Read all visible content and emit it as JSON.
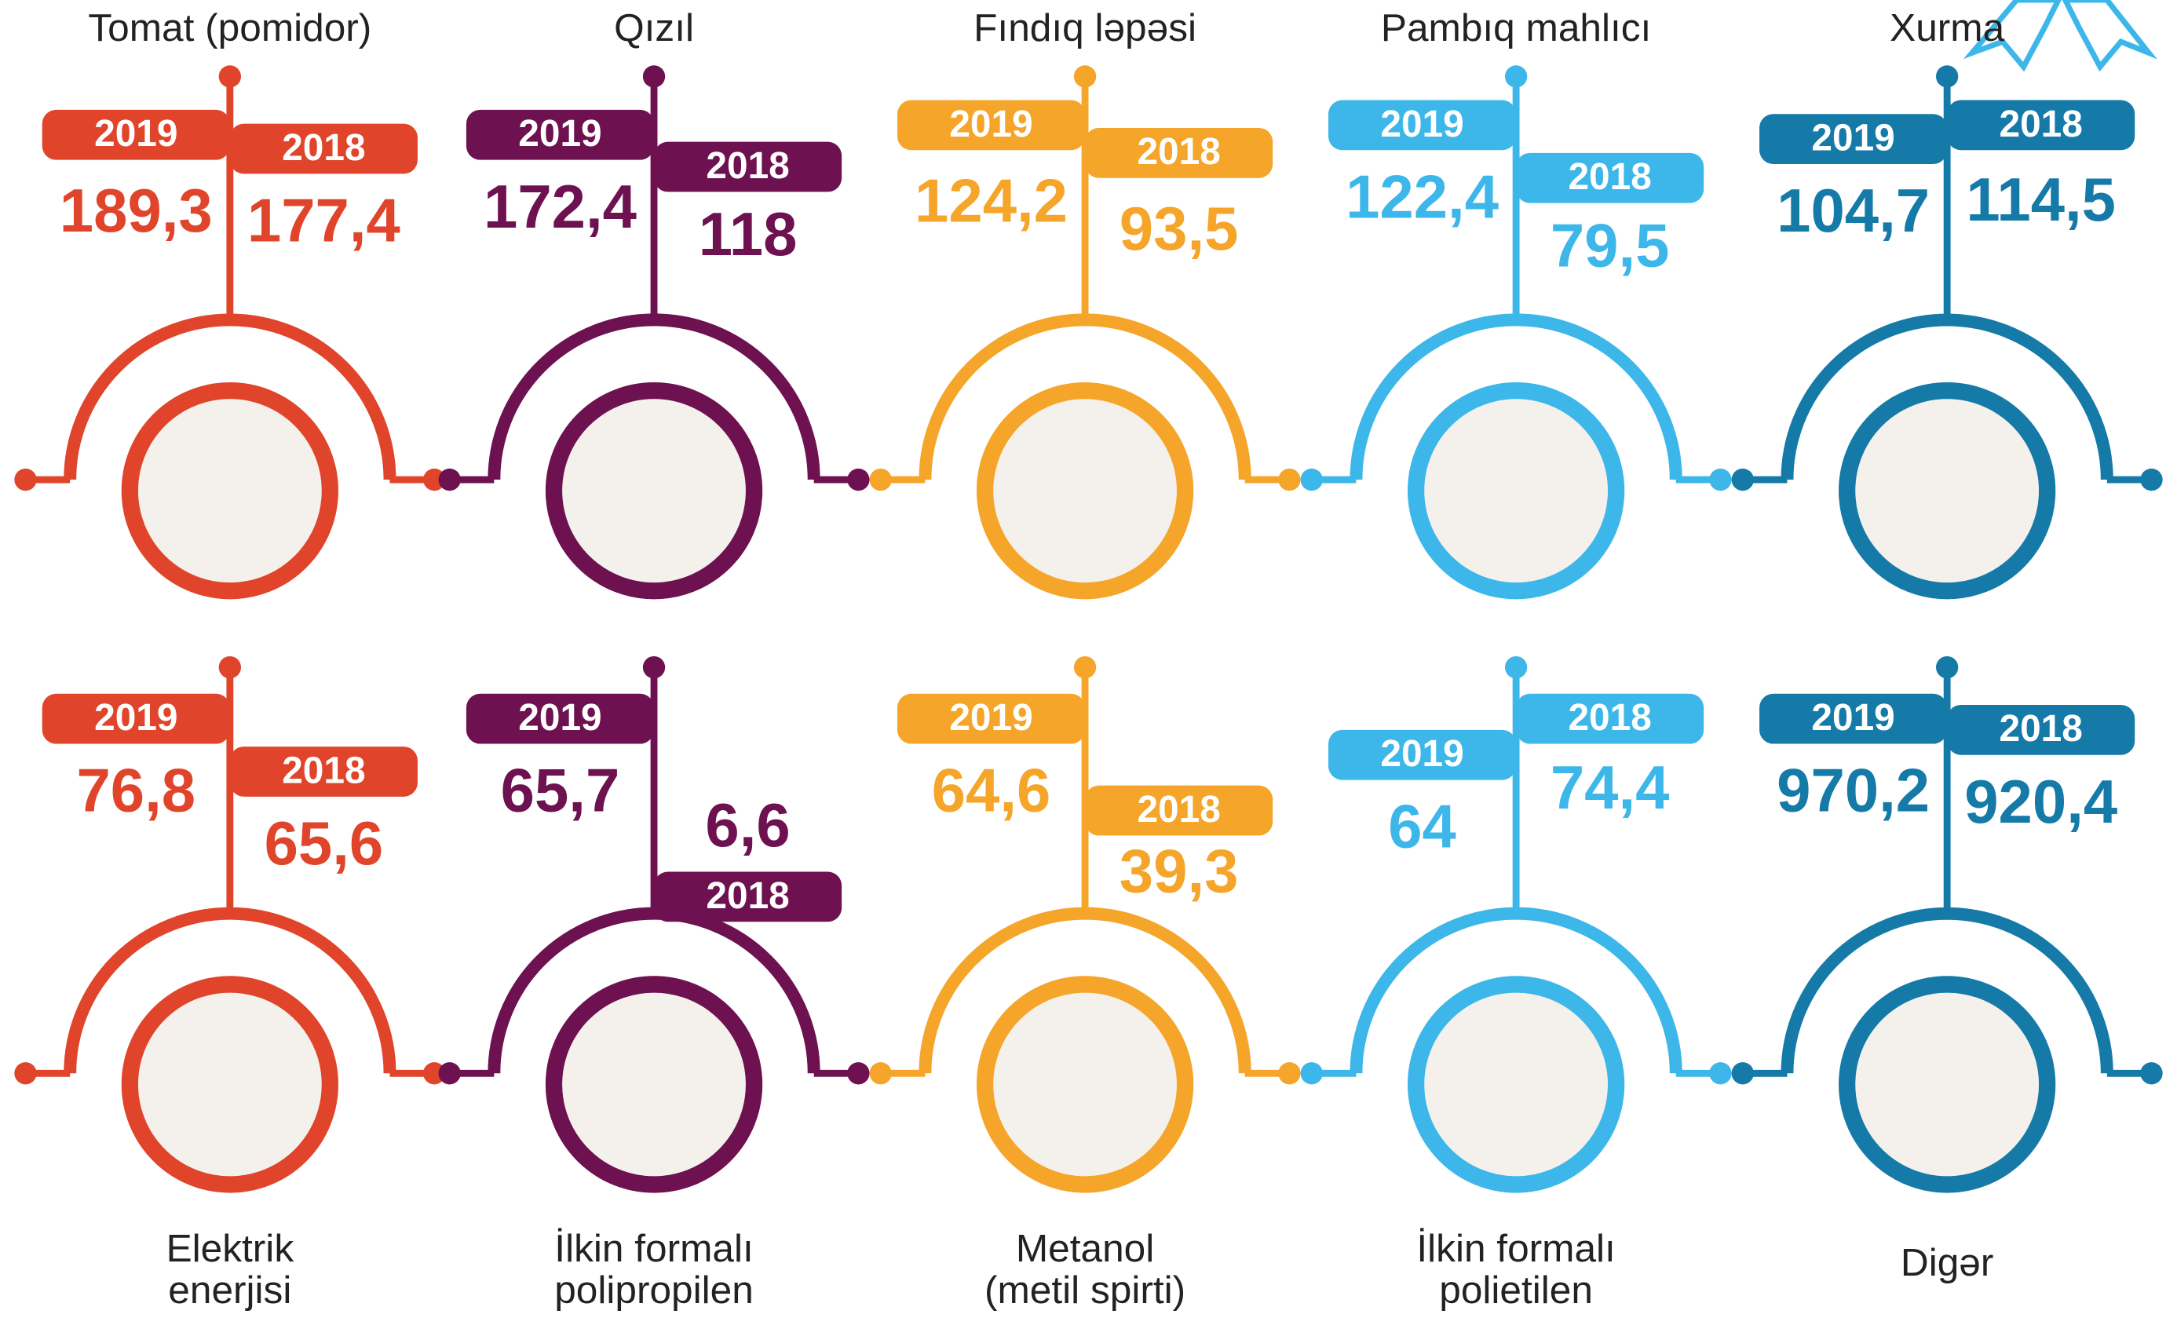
{
  "items": [
    {
      "label": [
        "Tomat (pomidor)"
      ],
      "color": "#e0452b",
      "left": {
        "year": "2019",
        "value": "189,3"
      },
      "right": {
        "year": "2018",
        "value": "177,4"
      }
    },
    {
      "label": [
        "Qızıl"
      ],
      "color": "#6d1150",
      "left": {
        "year": "2019",
        "value": "172,4"
      },
      "right": {
        "year": "2018",
        "value": "118"
      }
    },
    {
      "label": [
        "Fındıq ləpəsi"
      ],
      "color": "#f5a529",
      "left": {
        "year": "2019",
        "value": "124,2"
      },
      "right": {
        "year": "2018",
        "value": "93,5"
      }
    },
    {
      "label": [
        "Pambıq mahlıcı"
      ],
      "color": "#3db7e9",
      "left": {
        "year": "2019",
        "value": "122,4"
      },
      "right": {
        "year": "2018",
        "value": "79,5"
      }
    },
    {
      "label": [
        "Xurma"
      ],
      "color": "#157aa8",
      "left": {
        "year": "2019",
        "value": "104,7"
      },
      "right": {
        "year": "2018",
        "value": "114,5"
      }
    },
    {
      "label": [
        "Elektrik",
        "enerjisi"
      ],
      "color": "#e0452b",
      "left": {
        "year": "2019",
        "value": "76,8"
      },
      "right": {
        "year": "2018",
        "value": "65,6"
      }
    },
    {
      "label": [
        "İlkin formalı",
        "polipropilen"
      ],
      "color": "#6d1150",
      "left": {
        "year": "2019",
        "value": "65,7"
      },
      "right": {
        "year": "2018",
        "value": "6,6"
      }
    },
    {
      "label": [
        "Metanol",
        "(metil spirti)"
      ],
      "color": "#f5a529",
      "left": {
        "year": "2019",
        "value": "64,6"
      },
      "right": {
        "year": "2018",
        "value": "39,3"
      }
    },
    {
      "label": [
        "İlkin formalı",
        "polietilen"
      ],
      "color": "#3db7e9",
      "left": {
        "year": "2019",
        "value": "64"
      },
      "right": {
        "year": "2018",
        "value": "74,4"
      }
    },
    {
      "label": [
        "Digər"
      ],
      "color": "#157aa8",
      "left": {
        "year": "2019",
        "value": "970,2"
      },
      "right": {
        "year": "2018",
        "value": "920,4"
      }
    }
  ]
}
